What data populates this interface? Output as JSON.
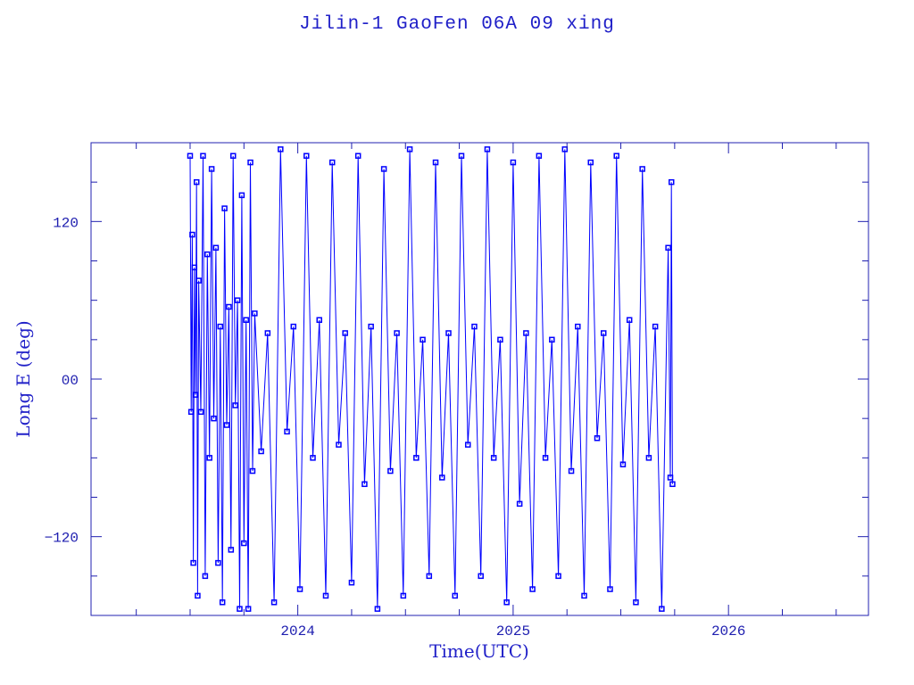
{
  "chart_data": {
    "type": "line",
    "title": "Jilin-1 GaoFen 06A 09 xing",
    "xlabel": "Time(UTC)",
    "ylabel": "Long E (deg)",
    "xlim": [
      2023.04,
      2026.65
    ],
    "ylim": [
      -180,
      180
    ],
    "x_ticks": [
      {
        "value": 2024,
        "label": "2024"
      },
      {
        "value": 2025,
        "label": "2025"
      },
      {
        "value": 2026,
        "label": "2026"
      }
    ],
    "y_ticks": [
      {
        "value": 120,
        "label": "120"
      },
      {
        "value": 0,
        "label": "00"
      },
      {
        "value": -120,
        "label": "-120"
      }
    ],
    "x_minor_step": 0.25,
    "y_minor_step": 30,
    "grid": false,
    "marker": "square",
    "colors": {
      "series": "#0000ff",
      "axes": "#2020b0",
      "text": "#2020c8"
    },
    "series": [
      {
        "points": [
          [
            2023.5,
            170
          ],
          [
            2023.505,
            -25
          ],
          [
            2023.51,
            110
          ],
          [
            2023.515,
            -140
          ],
          [
            2023.52,
            85
          ],
          [
            2023.525,
            -12
          ],
          [
            2023.53,
            150
          ],
          [
            2023.535,
            -165
          ],
          [
            2023.54,
            75
          ],
          [
            2023.55,
            -25
          ],
          [
            2023.56,
            170
          ],
          [
            2023.57,
            -150
          ],
          [
            2023.58,
            95
          ],
          [
            2023.59,
            -60
          ],
          [
            2023.6,
            160
          ],
          [
            2023.61,
            -30
          ],
          [
            2023.62,
            100
          ],
          [
            2023.63,
            -140
          ],
          [
            2023.64,
            40
          ],
          [
            2023.65,
            -170
          ],
          [
            2023.66,
            130
          ],
          [
            2023.67,
            -35
          ],
          [
            2023.68,
            55
          ],
          [
            2023.69,
            -130
          ],
          [
            2023.7,
            170
          ],
          [
            2023.71,
            -20
          ],
          [
            2023.72,
            60
          ],
          [
            2023.73,
            -175
          ],
          [
            2023.74,
            140
          ],
          [
            2023.75,
            -125
          ],
          [
            2023.76,
            45
          ],
          [
            2023.77,
            -175
          ],
          [
            2023.78,
            165
          ],
          [
            2023.79,
            -70
          ],
          [
            2023.8,
            50
          ],
          [
            2023.83,
            -55
          ],
          [
            2023.86,
            35
          ],
          [
            2023.89,
            -170
          ],
          [
            2023.92,
            175
          ],
          [
            2023.95,
            -40
          ],
          [
            2023.98,
            40
          ],
          [
            2024.01,
            -160
          ],
          [
            2024.04,
            170
          ],
          [
            2024.07,
            -60
          ],
          [
            2024.1,
            45
          ],
          [
            2024.13,
            -165
          ],
          [
            2024.16,
            165
          ],
          [
            2024.19,
            -50
          ],
          [
            2024.22,
            35
          ],
          [
            2024.25,
            -155
          ],
          [
            2024.28,
            170
          ],
          [
            2024.31,
            -80
          ],
          [
            2024.34,
            40
          ],
          [
            2024.37,
            -175
          ],
          [
            2024.4,
            160
          ],
          [
            2024.43,
            -70
          ],
          [
            2024.46,
            35
          ],
          [
            2024.49,
            -165
          ],
          [
            2024.52,
            175
          ],
          [
            2024.55,
            -60
          ],
          [
            2024.58,
            30
          ],
          [
            2024.61,
            -150
          ],
          [
            2024.64,
            165
          ],
          [
            2024.67,
            -75
          ],
          [
            2024.7,
            35
          ],
          [
            2024.73,
            -165
          ],
          [
            2024.76,
            170
          ],
          [
            2024.79,
            -50
          ],
          [
            2024.82,
            40
          ],
          [
            2024.85,
            -150
          ],
          [
            2024.88,
            175
          ],
          [
            2024.91,
            -60
          ],
          [
            2024.94,
            30
          ],
          [
            2024.97,
            -170
          ],
          [
            2025.0,
            165
          ],
          [
            2025.03,
            -95
          ],
          [
            2025.06,
            35
          ],
          [
            2025.09,
            -160
          ],
          [
            2025.12,
            170
          ],
          [
            2025.15,
            -60
          ],
          [
            2025.18,
            30
          ],
          [
            2025.21,
            -150
          ],
          [
            2025.24,
            175
          ],
          [
            2025.27,
            -70
          ],
          [
            2025.3,
            40
          ],
          [
            2025.33,
            -165
          ],
          [
            2025.36,
            165
          ],
          [
            2025.39,
            -45
          ],
          [
            2025.42,
            35
          ],
          [
            2025.45,
            -160
          ],
          [
            2025.48,
            170
          ],
          [
            2025.51,
            -65
          ],
          [
            2025.54,
            45
          ],
          [
            2025.57,
            -170
          ],
          [
            2025.6,
            160
          ],
          [
            2025.63,
            -60
          ],
          [
            2025.66,
            40
          ],
          [
            2025.69,
            -175
          ],
          [
            2025.72,
            100
          ],
          [
            2025.73,
            -75
          ],
          [
            2025.735,
            150
          ],
          [
            2025.74,
            -80
          ]
        ]
      }
    ]
  }
}
